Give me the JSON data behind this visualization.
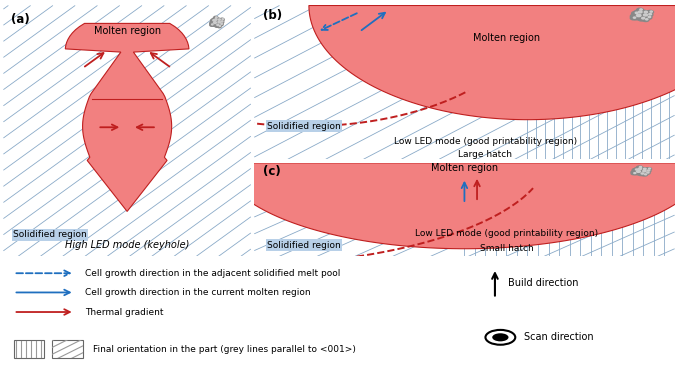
{
  "fig_width": 6.78,
  "fig_height": 3.66,
  "bg_color": "#FFFFFF",
  "panel_bg": "#B8D0E8",
  "hatch_line_color": "#8AAAC8",
  "molten_color": "#F28080",
  "solidified_label_a": "Solidified region",
  "molten_label_a": "Molten region",
  "title_a": "High LED mode (keyhole)",
  "title_b_line1": "Low LED mode (good printability region)",
  "title_b_line2": "Large hatch",
  "title_c_line1": "Low LED mode (good printability region)",
  "title_c_line2": "Small hatch",
  "molten_label_b": "Molten region",
  "solidified_label_b": "Solidified region",
  "molten_label_c": "Molten region",
  "solidified_label_c": "Solidified region",
  "legend_item1": "Cell growth direction in the adjacent solidified melt pool",
  "legend_item2": "Cell growth direction in the current molten region",
  "legend_item3": "Thermal gradient",
  "legend_item4": "Final orientation in the part (grey lines parallel to <001>)",
  "build_direction": "Build direction",
  "scan_direction": "Scan direction",
  "blue_color": "#1F6FBF",
  "red_color": "#BF1F1F",
  "panel_edge": "#444444"
}
